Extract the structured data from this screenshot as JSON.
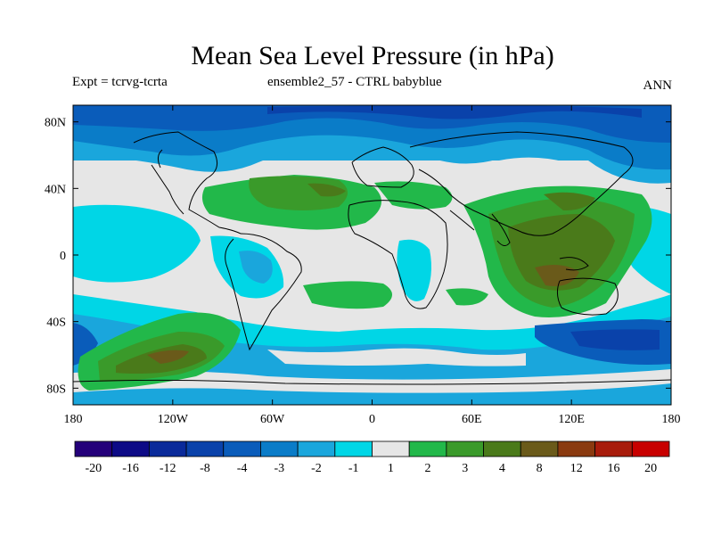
{
  "header": {
    "title": "Mean Sea Level Pressure (in hPa)",
    "left_label": "Expt = tcrvg-tcrta",
    "center_label": "ensemble2_57 - CTRL babyblue",
    "right_label": "ANN"
  },
  "axes": {
    "x_ticks": [
      "180",
      "120W",
      "60W",
      "0",
      "60E",
      "120E",
      "180"
    ],
    "y_ticks": [
      "80N",
      "40N",
      "0",
      "40S",
      "80S"
    ]
  },
  "colorbar": {
    "labels": [
      "-20",
      "-16",
      "-12",
      "-8",
      "-4",
      "-3",
      "-2",
      "-1",
      "1",
      "2",
      "3",
      "4",
      "8",
      "12",
      "16",
      "20"
    ],
    "colors": [
      "#24007a",
      "#0d0a86",
      "#0a2a9a",
      "#0a42aa",
      "#0a5cba",
      "#0a7cc8",
      "#1aa6dc",
      "#00d6e6",
      "#e6e6e6",
      "#22b84a",
      "#3a9a2a",
      "#4a7a1a",
      "#6a5a1a",
      "#8a3a10",
      "#a81c0c",
      "#c80000"
    ]
  }
}
